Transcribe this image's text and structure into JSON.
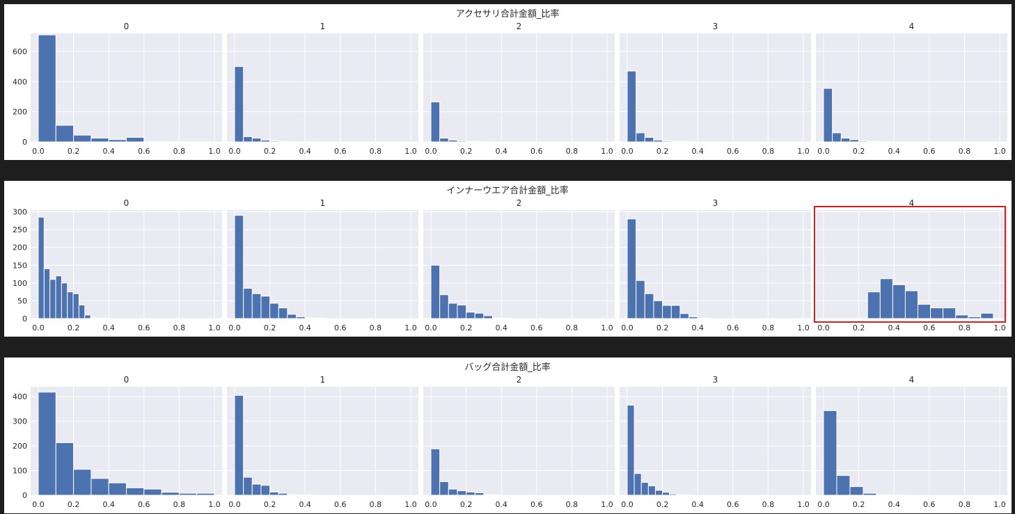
{
  "colors": {
    "bar": "#4c72b0",
    "panel": "#eaeaf2",
    "highlight": "#e01b1b"
  },
  "chart_data": [
    {
      "type": "bar",
      "title": "アクセサリ合計金額_比率",
      "facet_titles": [
        "0",
        "1",
        "2",
        "3",
        "4"
      ],
      "xlim": [
        0,
        1
      ],
      "xticks": [
        "0.0",
        "0.2",
        "0.4",
        "0.6",
        "0.8",
        "1.0"
      ],
      "ylim": [
        0,
        720
      ],
      "yticks": [
        "0",
        "200",
        "400",
        "600"
      ],
      "grid": true,
      "panels": [
        {
          "bin_width": 0.1,
          "values": [
            710,
            110,
            45,
            25,
            15,
            30,
            5,
            2,
            1,
            1
          ]
        },
        {
          "bin_width": 0.05,
          "values": [
            500,
            35,
            25,
            12,
            6,
            3,
            2,
            1,
            1,
            1,
            0,
            0,
            0,
            0,
            0,
            0,
            0,
            0,
            0,
            0
          ]
        },
        {
          "bin_width": 0.05,
          "values": [
            265,
            25,
            12,
            6,
            3,
            2,
            1,
            1,
            0,
            0,
            0,
            0,
            0,
            0,
            0,
            0,
            0,
            0,
            0,
            0
          ]
        },
        {
          "bin_width": 0.05,
          "values": [
            470,
            60,
            30,
            12,
            6,
            3,
            2,
            1,
            0,
            0,
            0,
            0,
            0,
            0,
            0,
            0,
            0,
            0,
            0,
            0
          ]
        },
        {
          "bin_width": 0.05,
          "values": [
            355,
            60,
            25,
            15,
            6,
            3,
            2,
            1,
            0,
            0,
            0,
            0,
            0,
            0,
            0,
            0,
            0,
            0,
            0,
            0
          ]
        }
      ]
    },
    {
      "type": "bar",
      "title": "インナーウエア合計金額_比率",
      "facet_titles": [
        "0",
        "1",
        "2",
        "3",
        "4"
      ],
      "xlim": [
        0,
        1
      ],
      "xticks": [
        "0.0",
        "0.2",
        "0.4",
        "0.6",
        "0.8",
        "1.0"
      ],
      "ylim": [
        0,
        305
      ],
      "yticks": [
        "0",
        "50",
        "100",
        "150",
        "200",
        "250",
        "300"
      ],
      "grid": true,
      "highlighted_panel": 4,
      "panels": [
        {
          "bin_width": 0.033,
          "values": [
            285,
            140,
            110,
            120,
            100,
            75,
            70,
            38,
            10,
            2,
            1,
            1,
            0,
            0,
            0,
            0,
            0,
            0,
            0,
            0,
            0,
            0,
            0,
            0,
            0,
            0,
            0,
            0,
            0,
            0
          ]
        },
        {
          "bin_width": 0.05,
          "values": [
            290,
            85,
            70,
            63,
            43,
            30,
            12,
            5,
            2,
            1,
            0,
            0,
            0,
            0,
            0,
            0,
            0,
            0,
            0,
            0
          ]
        },
        {
          "bin_width": 0.05,
          "values": [
            150,
            67,
            43,
            38,
            18,
            15,
            8,
            2,
            1,
            0,
            0,
            0,
            0,
            0,
            0,
            0,
            0,
            0,
            0,
            0
          ]
        },
        {
          "bin_width": 0.05,
          "values": [
            280,
            107,
            70,
            50,
            37,
            37,
            14,
            5,
            1,
            0,
            0,
            0,
            0,
            0,
            0,
            0,
            0,
            0,
            0,
            0
          ]
        },
        {
          "bin_start": 0.25,
          "bin_width": 0.0714,
          "values": [
            75,
            112,
            95,
            78,
            40,
            30,
            30,
            10,
            5,
            15
          ]
        }
      ]
    },
    {
      "type": "bar",
      "title": "バッグ合計金額_比率",
      "facet_titles": [
        "0",
        "1",
        "2",
        "3",
        "4"
      ],
      "xlim": [
        0,
        1
      ],
      "xticks": [
        "0.0",
        "0.2",
        "0.4",
        "0.6",
        "0.8",
        "1.0"
      ],
      "ylim": [
        0,
        440
      ],
      "yticks": [
        "0",
        "100",
        "200",
        "300",
        "400"
      ],
      "grid": true,
      "panels": [
        {
          "bin_width": 0.1,
          "values": [
            418,
            213,
            105,
            68,
            50,
            30,
            25,
            12,
            8,
            8
          ]
        },
        {
          "bin_width": 0.05,
          "values": [
            405,
            73,
            45,
            40,
            13,
            8,
            3,
            1,
            1,
            0,
            0,
            0,
            0,
            0,
            0,
            0,
            0,
            0,
            0,
            0
          ]
        },
        {
          "bin_width": 0.05,
          "values": [
            188,
            55,
            25,
            18,
            13,
            10,
            2,
            1,
            0,
            0,
            0,
            0,
            0,
            0,
            0,
            0,
            0,
            0,
            0,
            0
          ]
        },
        {
          "bin_width": 0.04,
          "values": [
            365,
            88,
            52,
            38,
            20,
            12,
            5,
            2,
            1,
            0,
            0,
            0,
            0,
            0,
            0,
            0,
            0,
            0,
            0,
            0,
            0,
            0,
            0,
            0,
            0
          ]
        },
        {
          "bin_width": 0.075,
          "values": [
            343,
            80,
            35,
            8,
            2,
            1,
            0,
            0,
            0,
            0,
            0,
            0,
            0
          ]
        }
      ]
    }
  ]
}
